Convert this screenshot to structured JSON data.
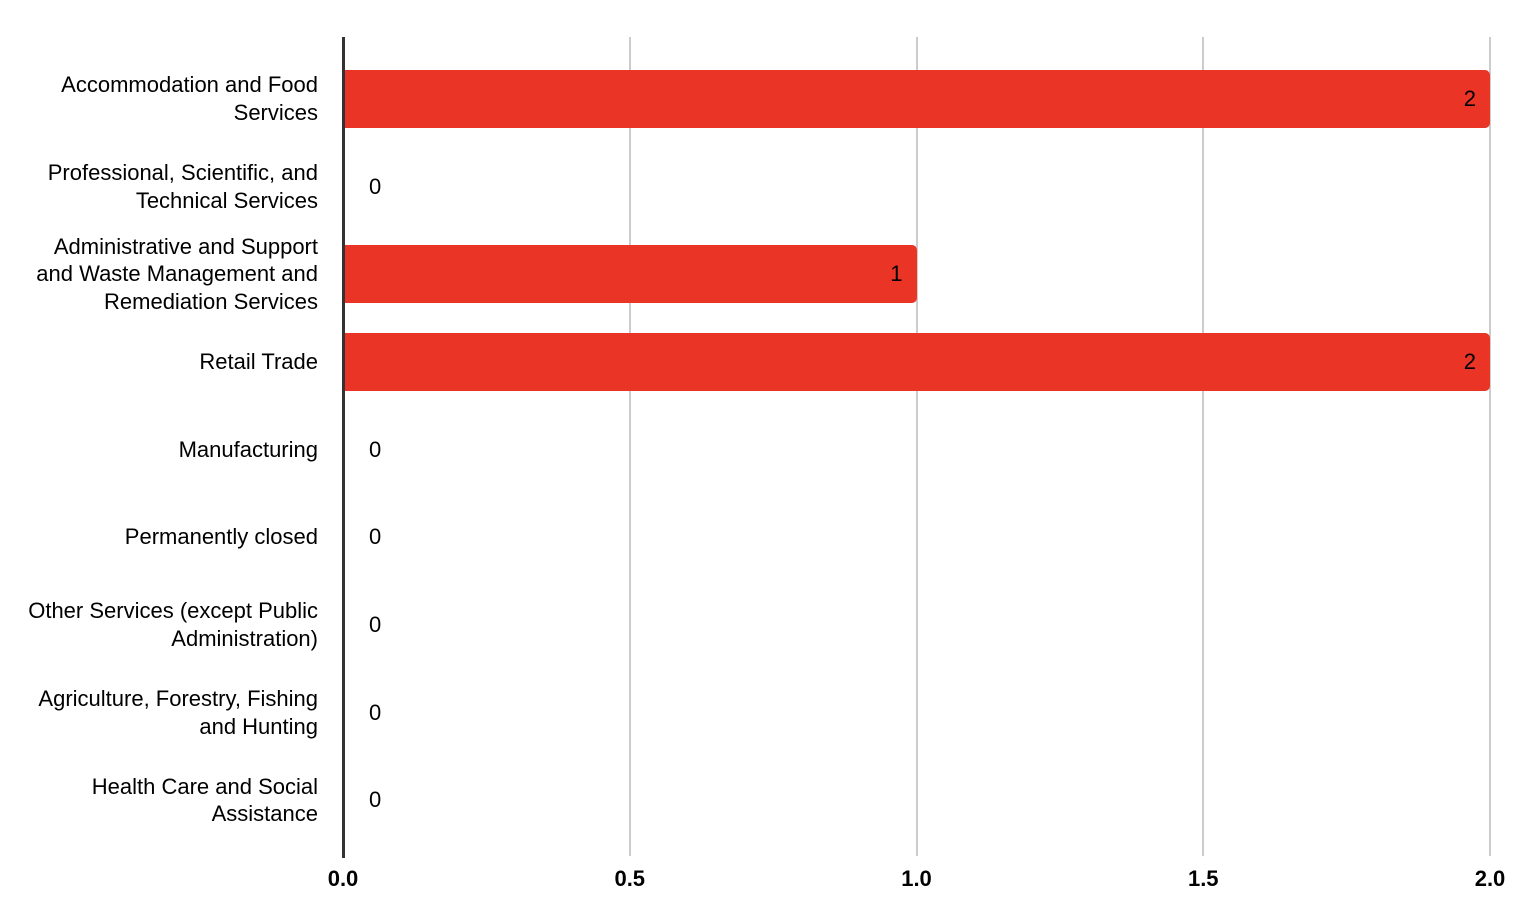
{
  "chart_data": {
    "type": "bar",
    "orientation": "horizontal",
    "title": "",
    "xlabel": "",
    "ylabel": "",
    "categories": [
      "Accommodation and Food Services",
      "Professional, Scientific, and Technical Services",
      "Administrative and Support and Waste Management and Remediation Services",
      "Retail Trade",
      "Manufacturing",
      "Permanently closed",
      "Other Services (except Public Administration)",
      "Agriculture, Forestry, Fishing and Hunting",
      "Health Care and Social Assistance"
    ],
    "values": [
      2,
      0,
      1,
      2,
      0,
      0,
      0,
      0,
      0
    ],
    "value_labels": [
      "2",
      "0",
      "1",
      "2",
      "0",
      "0",
      "0",
      "0",
      "0"
    ],
    "xlim": [
      0,
      2
    ],
    "x_tick_values": [
      0,
      0.5,
      1,
      1.5,
      2
    ],
    "x_ticks": [
      "0.0",
      "0.5",
      "1.0",
      "1.5",
      "2.0"
    ],
    "grid": true,
    "legend": "none",
    "colors": {
      "bar": "#e93426",
      "gridline": "#cccccc",
      "axis_line": "#333333",
      "text": "#000000",
      "background": "#ffffff"
    }
  }
}
